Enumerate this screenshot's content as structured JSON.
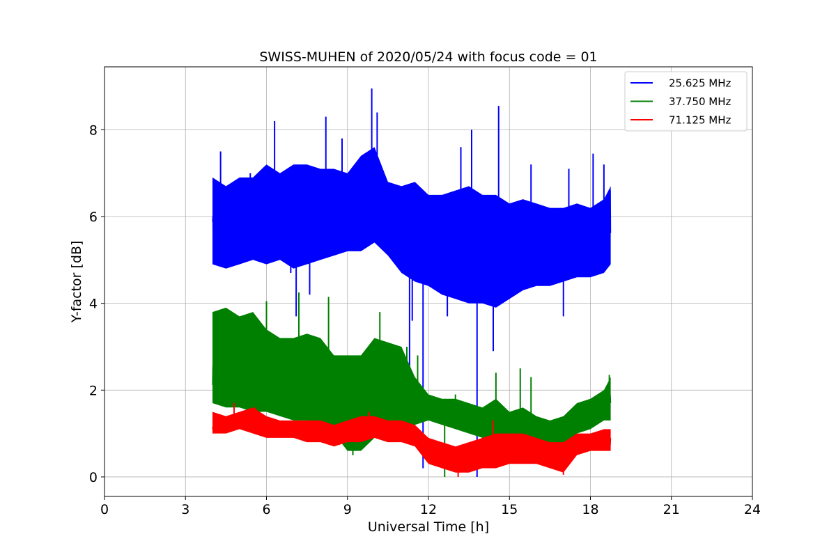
{
  "chart_data": {
    "type": "line",
    "title": "SWISS-MUHEN of 2020/05/24 with focus code = 01",
    "xlabel": "Universal Time [h]",
    "ylabel": "Y-factor [dB]",
    "xlim": [
      0,
      24
    ],
    "ylim": [
      -0.45,
      9.45
    ],
    "xticks": [
      0,
      3,
      6,
      9,
      12,
      15,
      18,
      21,
      24
    ],
    "yticks": [
      0,
      2,
      4,
      6,
      8
    ],
    "grid": true,
    "legend_position": "top-right",
    "series": [
      {
        "name": "25.625 MHz",
        "color": "#0000ff",
        "x": [
          4.0,
          4.5,
          5.0,
          5.5,
          6.0,
          6.5,
          7.0,
          7.5,
          8.0,
          8.5,
          9.0,
          9.5,
          10.0,
          10.5,
          11.0,
          11.5,
          12.0,
          12.5,
          13.0,
          13.5,
          14.0,
          14.5,
          15.0,
          15.5,
          16.0,
          16.5,
          17.0,
          17.5,
          18.0,
          18.5,
          18.75
        ],
        "low": [
          4.9,
          4.8,
          4.9,
          5.0,
          4.9,
          5.0,
          4.8,
          4.9,
          5.0,
          5.1,
          5.2,
          5.2,
          5.4,
          5.1,
          4.7,
          4.5,
          4.4,
          4.2,
          4.1,
          4.0,
          4.0,
          3.9,
          4.1,
          4.3,
          4.4,
          4.4,
          4.5,
          4.6,
          4.6,
          4.7,
          4.9
        ],
        "high": [
          6.9,
          6.7,
          6.9,
          6.9,
          7.2,
          7.0,
          7.2,
          7.2,
          7.1,
          7.1,
          7.0,
          7.4,
          7.6,
          6.8,
          6.7,
          6.8,
          6.5,
          6.5,
          6.6,
          6.7,
          6.5,
          6.5,
          6.3,
          6.4,
          6.3,
          6.2,
          6.2,
          6.3,
          6.2,
          6.4,
          6.7
        ],
        "spikes": [
          [
            4.3,
            7.5
          ],
          [
            5.4,
            7.0
          ],
          [
            6.3,
            8.2
          ],
          [
            6.9,
            4.7
          ],
          [
            7.1,
            3.7
          ],
          [
            7.6,
            4.2
          ],
          [
            8.2,
            8.3
          ],
          [
            8.8,
            7.8
          ],
          [
            9.9,
            8.95
          ],
          [
            10.1,
            8.4
          ],
          [
            11.3,
            2.3
          ],
          [
            11.4,
            3.6
          ],
          [
            11.8,
            0.2
          ],
          [
            12.7,
            3.7
          ],
          [
            13.2,
            7.6
          ],
          [
            13.6,
            8.0
          ],
          [
            13.8,
            0.0
          ],
          [
            14.0,
            5.0
          ],
          [
            14.4,
            2.9
          ],
          [
            14.6,
            8.55
          ],
          [
            15.8,
            7.2
          ],
          [
            17.0,
            3.7
          ],
          [
            17.2,
            7.1
          ],
          [
            18.1,
            7.45
          ],
          [
            18.5,
            7.2
          ]
        ]
      },
      {
        "name": "37.750 MHz",
        "color": "#008000",
        "x": [
          4.0,
          4.5,
          5.0,
          5.5,
          6.0,
          6.5,
          7.0,
          7.5,
          8.0,
          8.5,
          9.0,
          9.5,
          10.0,
          10.5,
          11.0,
          11.5,
          12.0,
          12.5,
          13.0,
          13.5,
          14.0,
          14.5,
          15.0,
          15.5,
          16.0,
          16.5,
          17.0,
          17.5,
          18.0,
          18.5,
          18.75
        ],
        "low": [
          1.7,
          1.6,
          1.6,
          1.5,
          1.5,
          1.4,
          1.3,
          1.3,
          1.2,
          1.0,
          0.6,
          0.6,
          0.9,
          0.8,
          1.0,
          1.2,
          1.3,
          1.2,
          1.1,
          1.0,
          0.9,
          0.8,
          0.7,
          0.7,
          0.5,
          0.4,
          0.4,
          1.0,
          1.1,
          1.3,
          1.3
        ],
        "high": [
          3.8,
          3.9,
          3.7,
          3.8,
          3.4,
          3.2,
          3.2,
          3.3,
          3.2,
          2.8,
          2.8,
          2.8,
          3.2,
          3.1,
          3.0,
          2.3,
          1.9,
          1.8,
          1.8,
          1.7,
          1.6,
          1.8,
          1.5,
          1.6,
          1.4,
          1.3,
          1.4,
          1.7,
          1.8,
          2.0,
          2.3
        ],
        "spikes": [
          [
            4.9,
            2.9
          ],
          [
            6.0,
            4.05
          ],
          [
            7.2,
            4.25
          ],
          [
            8.3,
            4.15
          ],
          [
            9.2,
            0.5
          ],
          [
            10.2,
            3.8
          ],
          [
            11.2,
            3.0
          ],
          [
            11.6,
            2.8
          ],
          [
            12.6,
            0.0
          ],
          [
            13.0,
            1.9
          ],
          [
            14.5,
            2.4
          ],
          [
            15.4,
            2.5
          ],
          [
            15.8,
            2.3
          ],
          [
            16.8,
            0.3
          ],
          [
            18.7,
            2.35
          ]
        ]
      },
      {
        "name": "71.125 MHz",
        "color": "#ff0000",
        "x": [
          4.0,
          4.5,
          5.0,
          5.5,
          6.0,
          6.5,
          7.0,
          7.5,
          8.0,
          8.5,
          9.0,
          9.5,
          10.0,
          10.5,
          11.0,
          11.5,
          12.0,
          12.5,
          13.0,
          13.5,
          14.0,
          14.5,
          15.0,
          15.5,
          16.0,
          16.5,
          17.0,
          17.5,
          18.0,
          18.5,
          18.75
        ],
        "low": [
          1.0,
          1.0,
          1.1,
          1.0,
          0.9,
          0.9,
          0.9,
          0.8,
          0.8,
          0.7,
          0.8,
          0.8,
          0.9,
          0.8,
          0.8,
          0.7,
          0.3,
          0.2,
          0.1,
          0.1,
          0.2,
          0.2,
          0.3,
          0.3,
          0.3,
          0.2,
          0.1,
          0.5,
          0.6,
          0.6,
          0.6
        ],
        "high": [
          1.5,
          1.4,
          1.5,
          1.6,
          1.4,
          1.3,
          1.3,
          1.3,
          1.3,
          1.2,
          1.3,
          1.4,
          1.4,
          1.3,
          1.3,
          1.2,
          0.9,
          0.8,
          0.7,
          0.8,
          0.9,
          1.0,
          1.0,
          1.0,
          0.9,
          0.8,
          0.8,
          1.0,
          1.0,
          1.1,
          1.1
        ],
        "spikes": [
          [
            4.8,
            1.7
          ],
          [
            5.6,
            1.6
          ],
          [
            9.8,
            1.5
          ],
          [
            13.1,
            0.0
          ],
          [
            14.4,
            1.3
          ],
          [
            17.0,
            0.05
          ]
        ]
      }
    ]
  }
}
